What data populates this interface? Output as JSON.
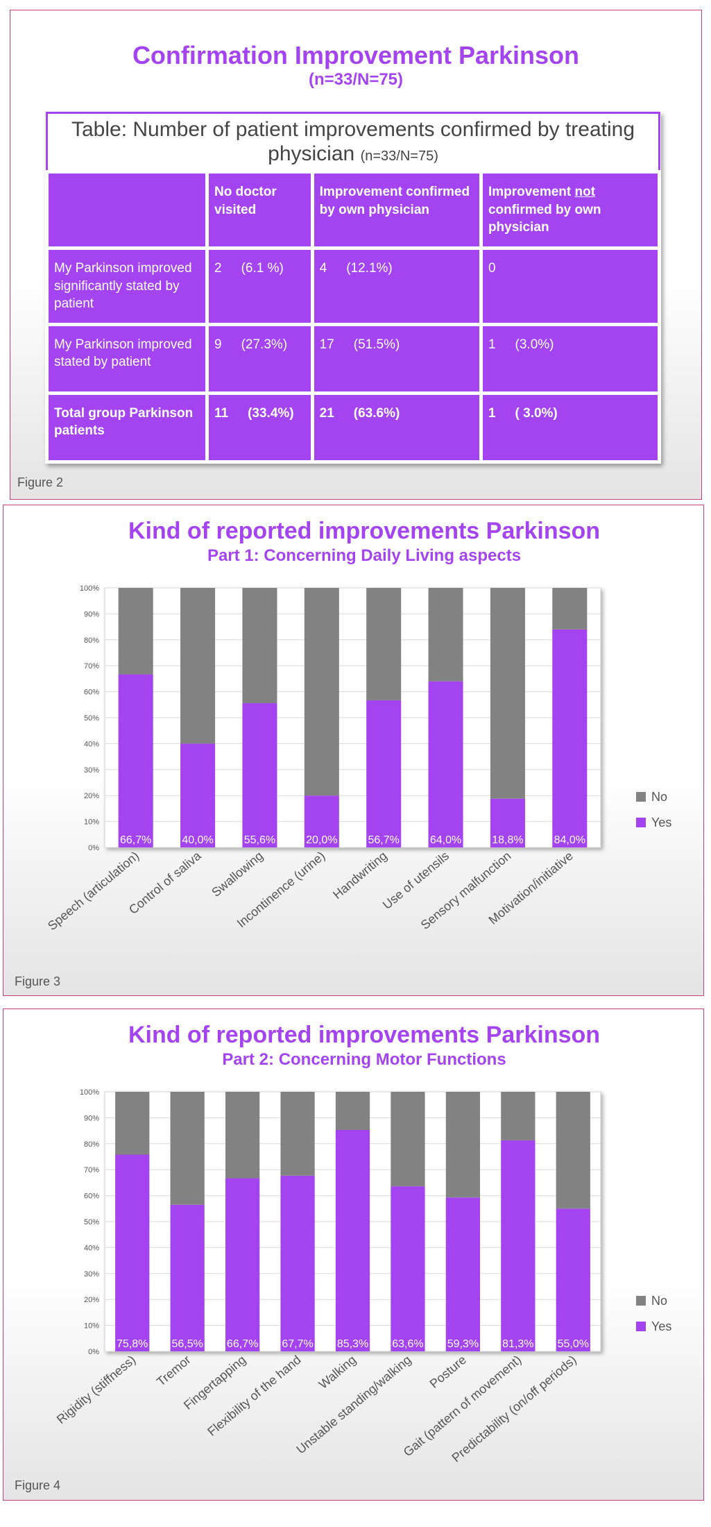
{
  "figure2": {
    "title": "Confirmation Improvement Parkinson",
    "subtitle": "(n=33/N=75)",
    "table": {
      "caption": "Table: Number of patient improvements confirmed by treating physician",
      "caption_note": "(n=33/N=75)",
      "header": [
        "No doctor visited",
        "Improvement confirmed by own physician",
        [
          "Improvement ",
          "not",
          " confirmed by own physician"
        ]
      ],
      "rows": [
        {
          "label": "My Parkinson improved significantly stated by patient",
          "cells": [
            [
              "2",
              "(6.1 %)"
            ],
            [
              "4",
              "(12.1%)"
            ],
            [
              "0"
            ]
          ]
        },
        {
          "label": "My Parkinson improved stated by patient",
          "cells": [
            [
              "9",
              "(27.3%)"
            ],
            [
              "17",
              "(51.5%)"
            ],
            [
              "1",
              "(3.0%)"
            ]
          ]
        },
        {
          "label": "Total group Parkinson patients",
          "cells": [
            [
              "11",
              "(33.4%)"
            ],
            [
              "21",
              "(63.6%)"
            ],
            [
              "1",
              "( 3.0%)"
            ]
          ]
        }
      ]
    },
    "caption": "Figure 2"
  },
  "chart_data": [
    {
      "type": "stacked_bar",
      "title": "Kind of reported improvements Parkinson",
      "subtitle": "Part 1: Concerning Daily Living aspects",
      "caption": "Figure 3",
      "categories": [
        "Speech (articulation)",
        "Control of saliva",
        "Swallowing",
        "Incontinence (urine)",
        "Handwriting",
        "Use of utensils",
        "Sensory malfunction",
        "Motivation/initiative"
      ],
      "series": [
        {
          "name": "Yes",
          "color": "#a444f0",
          "values": [
            66.7,
            40.0,
            55.6,
            20.0,
            56.7,
            64.0,
            18.8,
            84.0
          ],
          "value_labels": [
            "66,7%",
            "40,0%",
            "55,6%",
            "20,0%",
            "56,7%",
            "64,0%",
            "18,8%",
            "84,0%"
          ]
        },
        {
          "name": "No",
          "color": "#828282",
          "values": [
            33.3,
            60.0,
            44.4,
            80.0,
            43.3,
            36.0,
            81.2,
            16.0
          ]
        }
      ],
      "ylim": [
        0,
        100
      ],
      "yticks": [
        {
          "value": 0,
          "label": "0%"
        },
        {
          "value": 10,
          "label": "10%"
        },
        {
          "value": 20,
          "label": "20%"
        },
        {
          "value": 30,
          "label": "30%"
        },
        {
          "value": 40,
          "label": "40%"
        },
        {
          "value": 50,
          "label": "50%"
        },
        {
          "value": 60,
          "label": "60%"
        },
        {
          "value": 70,
          "label": "70%"
        },
        {
          "value": 80,
          "label": "80%"
        },
        {
          "value": 90,
          "label": "90%"
        },
        {
          "value": 100,
          "label": "100%"
        }
      ],
      "grid": true,
      "legend": "right"
    },
    {
      "type": "stacked_bar",
      "title": "Kind of reported improvements Parkinson",
      "subtitle": "Part 2: Concerning Motor Functions",
      "caption": "Figure 4",
      "categories": [
        "Rigidity (stiffness)",
        "Tremor",
        "Fingertapping",
        "Flexibility of the hand",
        "Walking",
        "Unstable standing/walking",
        "Posture",
        "Gait (pattern of movement)",
        "Predictability (on/off periods)"
      ],
      "series": [
        {
          "name": "Yes",
          "color": "#a444f0",
          "values": [
            75.8,
            56.5,
            66.7,
            67.7,
            85.3,
            63.6,
            59.3,
            81.3,
            55.0
          ],
          "value_labels": [
            "75,8%",
            "56,5%",
            "66,7%",
            "67,7%",
            "85,3%",
            "63,6%",
            "59,3%",
            "81,3%",
            "55,0%"
          ]
        },
        {
          "name": "No",
          "color": "#828282",
          "values": [
            24.2,
            43.5,
            33.3,
            32.3,
            14.7,
            36.4,
            40.7,
            18.7,
            45.0
          ]
        }
      ],
      "ylim": [
        0,
        100
      ],
      "yticks": [
        {
          "value": 0,
          "label": "0%"
        },
        {
          "value": 10,
          "label": "10%"
        },
        {
          "value": 20,
          "label": "20%"
        },
        {
          "value": 30,
          "label": "30%"
        },
        {
          "value": 40,
          "label": "40%"
        },
        {
          "value": 50,
          "label": "50%"
        },
        {
          "value": 60,
          "label": "60%"
        },
        {
          "value": 70,
          "label": "70%"
        },
        {
          "value": 80,
          "label": "80%"
        },
        {
          "value": 90,
          "label": "90%"
        },
        {
          "value": 100,
          "label": "100%"
        }
      ],
      "grid": true,
      "legend": "right"
    }
  ]
}
